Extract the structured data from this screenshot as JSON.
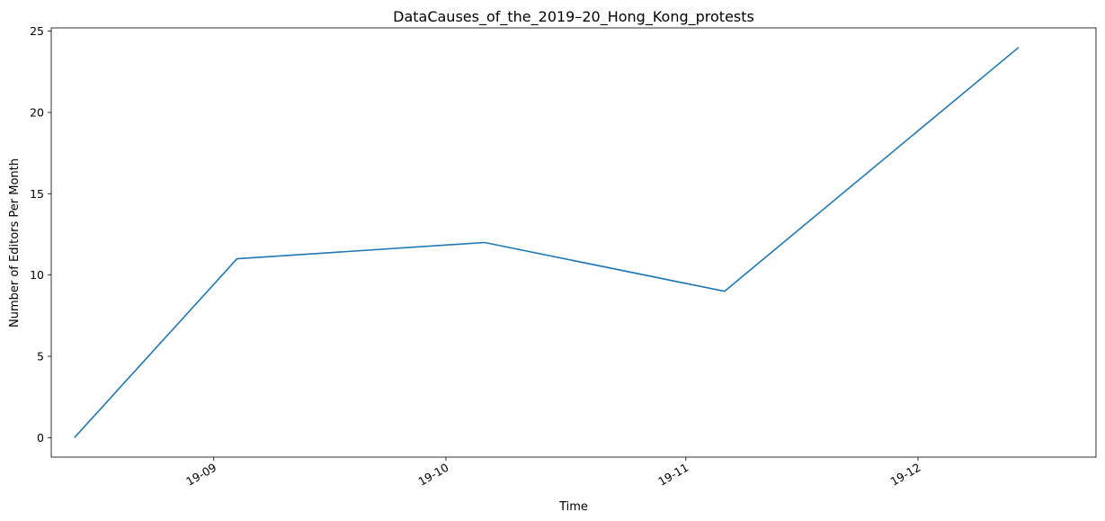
{
  "chart_data": {
    "type": "line",
    "title": "DataCauses_of_the_2019–20_Hong_Kong_protests",
    "xlabel": "Time",
    "ylabel": "Number of Editors Per Month",
    "x": [
      "2019-08-14",
      "2019-09-04",
      "2019-10-06",
      "2019-11-06",
      "2019-12-14"
    ],
    "series": [
      {
        "values": [
          0,
          11,
          12,
          9,
          24
        ],
        "color": "#1f77b4"
      }
    ],
    "ylim": [
      -1.2,
      25.2
    ],
    "xlim": [
      "2019-08-11",
      "2019-12-24"
    ],
    "y_ticks": [
      0,
      5,
      10,
      15,
      20,
      25
    ],
    "x_ticks": [
      {
        "date": "2019-09-01",
        "label": "19-09"
      },
      {
        "date": "2019-10-01",
        "label": "19-10"
      },
      {
        "date": "2019-11-01",
        "label": "19-11"
      },
      {
        "date": "2019-12-01",
        "label": "19-12"
      }
    ],
    "grid": false,
    "legend": false
  }
}
